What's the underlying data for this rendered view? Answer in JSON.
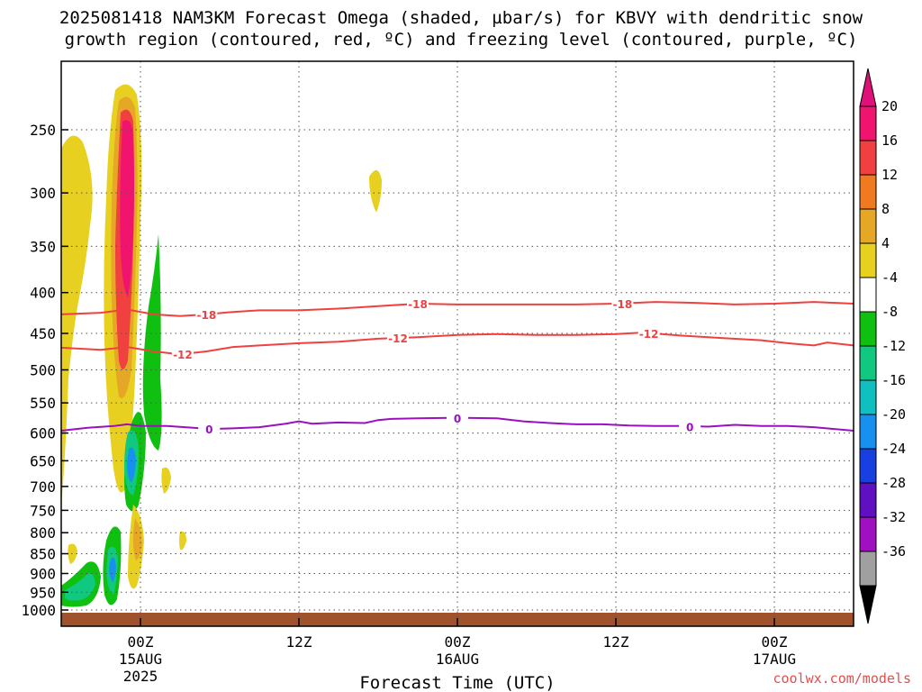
{
  "title_line1": "2025081418 NAM3KM Forecast Omega (shaded, µbar/s) for KBVY with dendritic snow",
  "title_line2": "growth region (contoured, red, ºC) and freezing level (contoured, purple, ºC)",
  "credit": "coolwx.com/models",
  "chart_data": {
    "type": "contour",
    "xlabel": "Forecast Time (UTC)",
    "ylabel": "",
    "x_ticks": [
      {
        "label": "00Z",
        "sub": "15AUG",
        "sub2": "2025",
        "hour": 6
      },
      {
        "label": "12Z",
        "sub": "",
        "sub2": "",
        "hour": 18
      },
      {
        "label": "00Z",
        "sub": "16AUG",
        "sub2": "",
        "hour": 30
      },
      {
        "label": "12Z",
        "sub": "",
        "sub2": "",
        "hour": 42
      },
      {
        "label": "00Z",
        "sub": "17AUG",
        "sub2": "",
        "hour": 54
      }
    ],
    "xlim_hours": [
      0,
      60
    ],
    "y_ticks": [
      250,
      300,
      350,
      400,
      450,
      500,
      550,
      600,
      650,
      700,
      750,
      800,
      850,
      900,
      950,
      1000
    ],
    "ylim_hpa": [
      200,
      1020
    ],
    "grid": true,
    "y_scale": "log",
    "colorbar": {
      "labels": [
        "20",
        "16",
        "12",
        "8",
        "4",
        "-4",
        "-8",
        "-12",
        "-16",
        "-20",
        "-24",
        "-28",
        "-32",
        "-36"
      ],
      "colors": [
        "#f0146e",
        "#f04040",
        "#f07a20",
        "#e6a626",
        "#e8d020",
        "#ffffff",
        "#10c010",
        "#10c880",
        "#10c0c0",
        "#1890f0",
        "#1840e0",
        "#6010c0",
        "#a010c0",
        "#a0a0a0"
      ],
      "top_color": "#e0107a",
      "bottom_color": "#000000"
    },
    "contours": [
      {
        "name": "-18",
        "color": "#f04040",
        "points": [
          [
            0,
            426
          ],
          [
            3,
            424
          ],
          [
            5,
            420
          ],
          [
            7,
            426
          ],
          [
            9,
            428
          ],
          [
            11,
            426
          ],
          [
            13,
            423
          ],
          [
            15,
            421
          ],
          [
            18,
            421
          ],
          [
            21,
            419
          ],
          [
            24,
            416
          ],
          [
            27,
            413
          ],
          [
            30,
            414
          ],
          [
            33,
            414
          ],
          [
            36,
            414
          ],
          [
            39,
            414
          ],
          [
            42,
            413
          ],
          [
            45,
            411
          ],
          [
            48,
            412
          ],
          [
            51,
            414
          ],
          [
            54,
            413
          ],
          [
            57,
            411
          ],
          [
            60,
            413
          ]
        ],
        "labels": [
          [
            11,
            426
          ],
          [
            27,
            413
          ],
          [
            42.5,
            413
          ]
        ]
      },
      {
        "name": "-12",
        "color": "#f04040",
        "points": [
          [
            0,
            469
          ],
          [
            3,
            472
          ],
          [
            5,
            468
          ],
          [
            7,
            474
          ],
          [
            9,
            478
          ],
          [
            11,
            474
          ],
          [
            13,
            468
          ],
          [
            15,
            466
          ],
          [
            18,
            463
          ],
          [
            21,
            461
          ],
          [
            24,
            457
          ],
          [
            27,
            455
          ],
          [
            30,
            452
          ],
          [
            33,
            451
          ],
          [
            36,
            452
          ],
          [
            39,
            452
          ],
          [
            42,
            451
          ],
          [
            44,
            449
          ],
          [
            47,
            453
          ],
          [
            50,
            456
          ],
          [
            53,
            459
          ],
          [
            55,
            463
          ],
          [
            57,
            466
          ],
          [
            58,
            462
          ],
          [
            60,
            466
          ]
        ],
        "labels": [
          [
            9.2,
            478
          ],
          [
            25.5,
            456
          ],
          [
            44.5,
            450
          ]
        ]
      },
      {
        "name": "0",
        "color": "#9a10c0",
        "points": [
          [
            0,
            596
          ],
          [
            2,
            591
          ],
          [
            4,
            588
          ],
          [
            5,
            585
          ],
          [
            6,
            588
          ],
          [
            8,
            588
          ],
          [
            10,
            591
          ],
          [
            11.2,
            593
          ],
          [
            13,
            592
          ],
          [
            15,
            590
          ],
          [
            17,
            584
          ],
          [
            18,
            580
          ],
          [
            19,
            584
          ],
          [
            21,
            582
          ],
          [
            23,
            583
          ],
          [
            24,
            578
          ],
          [
            25,
            576
          ],
          [
            27,
            575
          ],
          [
            30,
            574
          ],
          [
            33,
            575
          ],
          [
            35,
            580
          ],
          [
            37,
            583
          ],
          [
            39,
            585
          ],
          [
            41,
            585
          ],
          [
            43,
            587
          ],
          [
            45,
            588
          ],
          [
            47,
            588
          ],
          [
            49,
            589
          ],
          [
            51,
            586
          ],
          [
            53,
            588
          ],
          [
            55,
            588
          ],
          [
            57,
            590
          ],
          [
            60,
            596
          ]
        ],
        "labels": [
          [
            11.2,
            593
          ],
          [
            30,
            575
          ],
          [
            47.6,
            589
          ]
        ]
      }
    ]
  }
}
